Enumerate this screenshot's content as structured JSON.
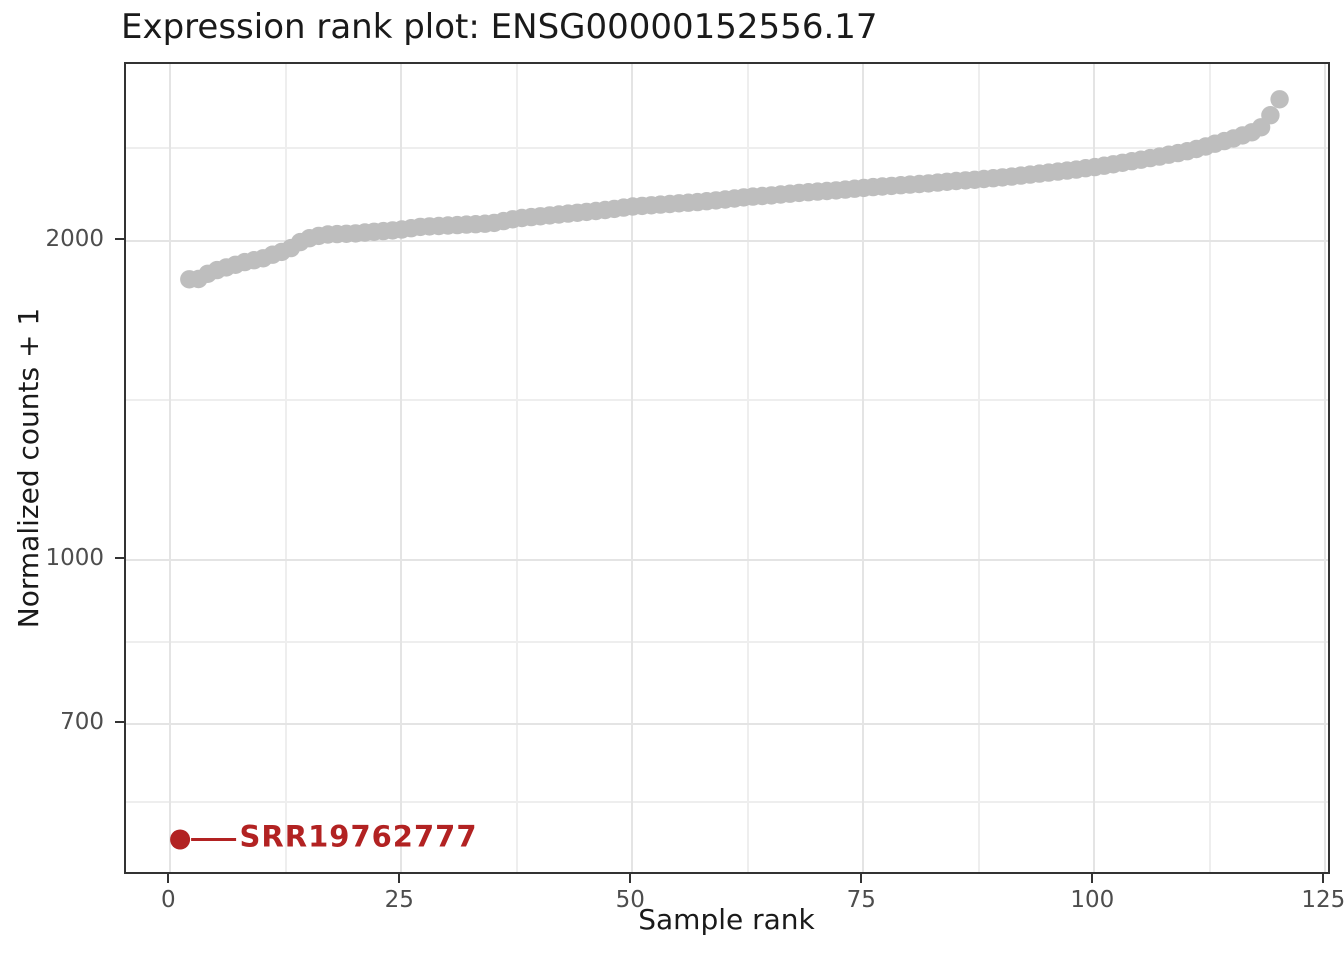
{
  "chart_data": {
    "type": "scatter",
    "title": "Expression rank plot: ENSG00000152556.17",
    "xlabel": "Sample rank",
    "ylabel": "Normalized counts + 1",
    "x_ticks": [
      0,
      25,
      50,
      75,
      100,
      125
    ],
    "x_minor_gridlines": [
      12.5,
      37.5,
      62.5,
      87.5,
      112.5
    ],
    "y_scale": "log10",
    "y_ticks": [
      700,
      1000,
      2000
    ],
    "y_minor_gridlines": [
      591.6,
      836.7,
      1414.2,
      2449.5
    ],
    "xlim": [
      -4.85,
      125.67
    ],
    "ylim": [
      504,
      2937
    ],
    "grid": true,
    "legend": false,
    "series": [
      {
        "name": "other-samples",
        "color": "#bebebe",
        "marker_radius": 9.2,
        "points": [
          [
            2,
            1840
          ],
          [
            3,
            1841
          ],
          [
            4,
            1862
          ],
          [
            5,
            1877
          ],
          [
            6,
            1888
          ],
          [
            7,
            1899
          ],
          [
            8,
            1910
          ],
          [
            9,
            1918
          ],
          [
            10,
            1926
          ],
          [
            11,
            1941
          ],
          [
            12,
            1953
          ],
          [
            13,
            1969
          ],
          [
            14,
            1995
          ],
          [
            15,
            2012
          ],
          [
            16,
            2022
          ],
          [
            17,
            2028
          ],
          [
            18,
            2030
          ],
          [
            19,
            2031
          ],
          [
            20,
            2033
          ],
          [
            21,
            2037
          ],
          [
            22,
            2040
          ],
          [
            23,
            2043
          ],
          [
            24,
            2046
          ],
          [
            25,
            2050
          ],
          [
            26,
            2056
          ],
          [
            27,
            2062
          ],
          [
            28,
            2064
          ],
          [
            29,
            2066
          ],
          [
            30,
            2068
          ],
          [
            31,
            2070
          ],
          [
            32,
            2072
          ],
          [
            33,
            2074
          ],
          [
            34,
            2076
          ],
          [
            35,
            2080
          ],
          [
            36,
            2088
          ],
          [
            37,
            2096
          ],
          [
            38,
            2102
          ],
          [
            39,
            2106
          ],
          [
            40,
            2110
          ],
          [
            41,
            2114
          ],
          [
            42,
            2118
          ],
          [
            43,
            2122
          ],
          [
            44,
            2126
          ],
          [
            45,
            2130
          ],
          [
            46,
            2134
          ],
          [
            47,
            2139
          ],
          [
            48,
            2144
          ],
          [
            49,
            2150
          ],
          [
            50,
            2155
          ],
          [
            51,
            2158
          ],
          [
            52,
            2161
          ],
          [
            53,
            2164
          ],
          [
            54,
            2167
          ],
          [
            55,
            2170
          ],
          [
            56,
            2173
          ],
          [
            57,
            2176
          ],
          [
            58,
            2180
          ],
          [
            59,
            2184
          ],
          [
            60,
            2188
          ],
          [
            61,
            2193
          ],
          [
            62,
            2198
          ],
          [
            63,
            2202
          ],
          [
            64,
            2205
          ],
          [
            65,
            2208
          ],
          [
            66,
            2212
          ],
          [
            67,
            2216
          ],
          [
            68,
            2220
          ],
          [
            69,
            2223
          ],
          [
            70,
            2226
          ],
          [
            71,
            2229
          ],
          [
            72,
            2232
          ],
          [
            73,
            2236
          ],
          [
            74,
            2240
          ],
          [
            75,
            2244
          ],
          [
            76,
            2248
          ],
          [
            77,
            2251
          ],
          [
            78,
            2254
          ],
          [
            79,
            2257
          ],
          [
            80,
            2260
          ],
          [
            81,
            2263
          ],
          [
            82,
            2266
          ],
          [
            83,
            2270
          ],
          [
            84,
            2274
          ],
          [
            85,
            2278
          ],
          [
            86,
            2281
          ],
          [
            87,
            2284
          ],
          [
            88,
            2288
          ],
          [
            89,
            2292
          ],
          [
            90,
            2296
          ],
          [
            91,
            2300
          ],
          [
            92,
            2305
          ],
          [
            93,
            2310
          ],
          [
            94,
            2315
          ],
          [
            95,
            2320
          ],
          [
            96,
            2325
          ],
          [
            97,
            2330
          ],
          [
            98,
            2335
          ],
          [
            99,
            2342
          ],
          [
            100,
            2348
          ],
          [
            101,
            2355
          ],
          [
            102,
            2362
          ],
          [
            103,
            2370
          ],
          [
            104,
            2378
          ],
          [
            105,
            2386
          ],
          [
            106,
            2394
          ],
          [
            107,
            2402
          ],
          [
            108,
            2412
          ],
          [
            109,
            2420
          ],
          [
            110,
            2430
          ],
          [
            111,
            2442
          ],
          [
            112,
            2455
          ],
          [
            113,
            2470
          ],
          [
            114,
            2484
          ],
          [
            115,
            2498
          ],
          [
            116,
            2515
          ],
          [
            117,
            2532
          ],
          [
            118,
            2560
          ],
          [
            119,
            2628
          ],
          [
            120,
            2720
          ]
        ]
      },
      {
        "name": "highlighted-sample",
        "color": "#b22222",
        "marker_radius": 10,
        "points": [
          [
            1,
            545
          ]
        ],
        "label": "SRR19762777"
      }
    ],
    "highlight": {
      "sample": "SRR19762777",
      "rank": 1,
      "value": 545,
      "color": "#b22222"
    }
  },
  "style": {
    "panel_border_color": "#333333",
    "major_grid_color": "#e4e4e4",
    "minor_grid_color": "#eeeeee",
    "tick_color": "#333333",
    "tick_label_color": "#4d4d4d",
    "text_color": "#1a1a1a",
    "point_color": "#bebebe",
    "accent_color": "#b22222",
    "background": "#ffffff"
  }
}
